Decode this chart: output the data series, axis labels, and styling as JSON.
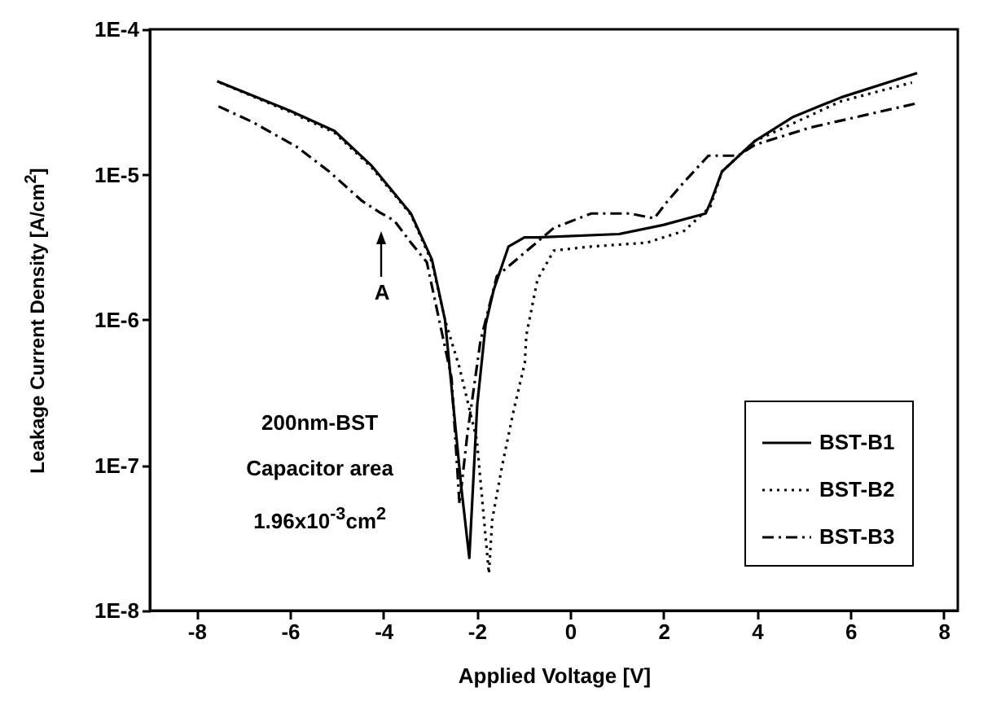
{
  "chart_data": {
    "type": "line",
    "xlabel": "Applied Voltage [V]",
    "ylabel": "Leakage Current Density [A/cm$^{2}$]",
    "xlim": [
      -9,
      8.3
    ],
    "ylim": [
      1e-08,
      0.0001
    ],
    "log": "y",
    "legend": "bottom right",
    "grid": false,
    "xticks": [
      -8,
      -6,
      -4,
      -2,
      0,
      2,
      4,
      6,
      8
    ],
    "yticks": [
      {
        "value": 1e-08,
        "label": "1E-8"
      },
      {
        "value": 1e-07,
        "label": "1E-7"
      },
      {
        "value": 1e-06,
        "label": "1E-6"
      },
      {
        "value": 1e-05,
        "label": "1E-5"
      },
      {
        "value": 0.0001,
        "label": "1E-4"
      }
    ],
    "series": [
      {
        "name": "BST-B1",
        "color": "#000000",
        "line_style": "solid",
        "x": [
          -7.56,
          -6.0,
          -5.05,
          -4.25,
          -3.41,
          -2.96,
          -2.68,
          -2.33,
          -2.16,
          -1.99,
          -1.81,
          -1.64,
          -1.32,
          -0.98,
          -0.7,
          1.05,
          1.99,
          2.9,
          3.02,
          3.25,
          3.95,
          4.78,
          5.8,
          7.43
        ],
        "values": [
          4.4e-05,
          2.75e-05,
          2e-05,
          1.15e-05,
          5.4e-06,
          2.6e-06,
          1e-06,
          7e-08,
          2.3e-08,
          2.6e-07,
          9.3e-07,
          1.6e-06,
          3.2e-06,
          3.7e-06,
          3.7e-06,
          3.9e-06,
          4.5e-06,
          5.4e-06,
          6.6e-06,
          1.05e-05,
          1.7e-05,
          2.5e-05,
          3.4e-05,
          5e-05
        ]
      },
      {
        "name": "BST-B2",
        "color": "#000000",
        "line_style": "dotted",
        "x": [
          -7.5,
          -6.0,
          -5.05,
          -4.25,
          -3.41,
          -2.96,
          -2.68,
          -2.37,
          -2.0,
          -1.74,
          -1.67,
          -1.46,
          -1.22,
          -0.97,
          -0.94,
          -0.7,
          -0.35,
          0.45,
          1.64,
          2.44,
          3.0,
          3.25,
          3.95,
          5.8,
          7.32
        ],
        "values": [
          4.3e-05,
          2.7e-05,
          1.95e-05,
          1.12e-05,
          5.3e-06,
          2.5e-06,
          1e-06,
          4.7e-07,
          1.5e-07,
          1.8e-08,
          4.2e-08,
          9.8e-08,
          2.3e-07,
          5.1e-07,
          7.8e-07,
          1.9e-06,
          3e-06,
          3.2e-06,
          3.4e-06,
          4.1e-06,
          6e-06,
          1.05e-05,
          1.7e-05,
          3.2e-05,
          4.3e-05
        ]
      },
      {
        "name": "BST-B3",
        "color": "#000000",
        "line_style": "dashdot",
        "x": [
          -7.53,
          -6.8,
          -5.85,
          -5.16,
          -4.46,
          -4.08,
          -3.76,
          -3.41,
          -3.07,
          -2.54,
          -2.37,
          -2.2,
          -1.92,
          -1.57,
          -0.35,
          0.45,
          1.28,
          1.8,
          2.09,
          2.44,
          2.96,
          3.59,
          3.95,
          5.12,
          7.43
        ],
        "values": [
          2.95e-05,
          2.3e-05,
          1.55e-05,
          1.05e-05,
          6.6e-06,
          5.5e-06,
          4.8e-06,
          3.4e-06,
          2.5e-06,
          4e-07,
          5.4e-08,
          1.65e-07,
          7.2e-07,
          2e-06,
          4.3e-06,
          5.4e-06,
          5.4e-06,
          5e-06,
          6.6e-06,
          8.9e-06,
          1.35e-05,
          1.35e-05,
          1.6e-05,
          2.1e-05,
          3.1e-05
        ]
      }
    ],
    "annotations": [
      "A",
      "200nm-BST",
      "Capacitor area",
      "1.96x10$^{-3}$cm$^{2}$"
    ]
  }
}
